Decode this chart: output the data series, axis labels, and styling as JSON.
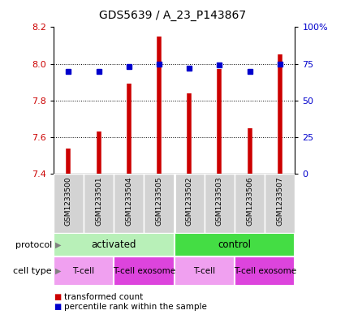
{
  "title": "GDS5639 / A_23_P143867",
  "samples": [
    "GSM1233500",
    "GSM1233501",
    "GSM1233504",
    "GSM1233505",
    "GSM1233502",
    "GSM1233503",
    "GSM1233506",
    "GSM1233507"
  ],
  "transformed_counts": [
    7.54,
    7.63,
    7.89,
    8.15,
    7.84,
    7.97,
    7.65,
    8.05
  ],
  "percentile_ranks": [
    70,
    70,
    73,
    75,
    72,
    74,
    70,
    75
  ],
  "ylim_left": [
    7.4,
    8.2
  ],
  "ylim_right": [
    0,
    100
  ],
  "yticks_left": [
    7.4,
    7.6,
    7.8,
    8.0,
    8.2
  ],
  "yticks_right": [
    0,
    25,
    50,
    75,
    100
  ],
  "ytick_labels_right": [
    "0",
    "25",
    "50",
    "75",
    "100%"
  ],
  "bar_color": "#cc0000",
  "dot_color": "#0000cc",
  "bar_bottom": 7.4,
  "protocol_labels": [
    "activated",
    "control"
  ],
  "protocol_ranges": [
    [
      0,
      4
    ],
    [
      4,
      8
    ]
  ],
  "protocol_color_left": "#b8f0b8",
  "protocol_color_right": "#44dd44",
  "cell_type_labels": [
    "T-cell",
    "T-cell exosome",
    "T-cell",
    "T-cell exosome"
  ],
  "cell_type_ranges": [
    [
      0,
      2
    ],
    [
      2,
      4
    ],
    [
      4,
      6
    ],
    [
      6,
      8
    ]
  ],
  "cell_type_color_light": "#f0a0f0",
  "cell_type_color_dark": "#dd44dd",
  "legend_red": "transformed count",
  "legend_blue": "percentile rank within the sample",
  "background_color": "#ffffff",
  "sample_bg_color": "#d3d3d3"
}
